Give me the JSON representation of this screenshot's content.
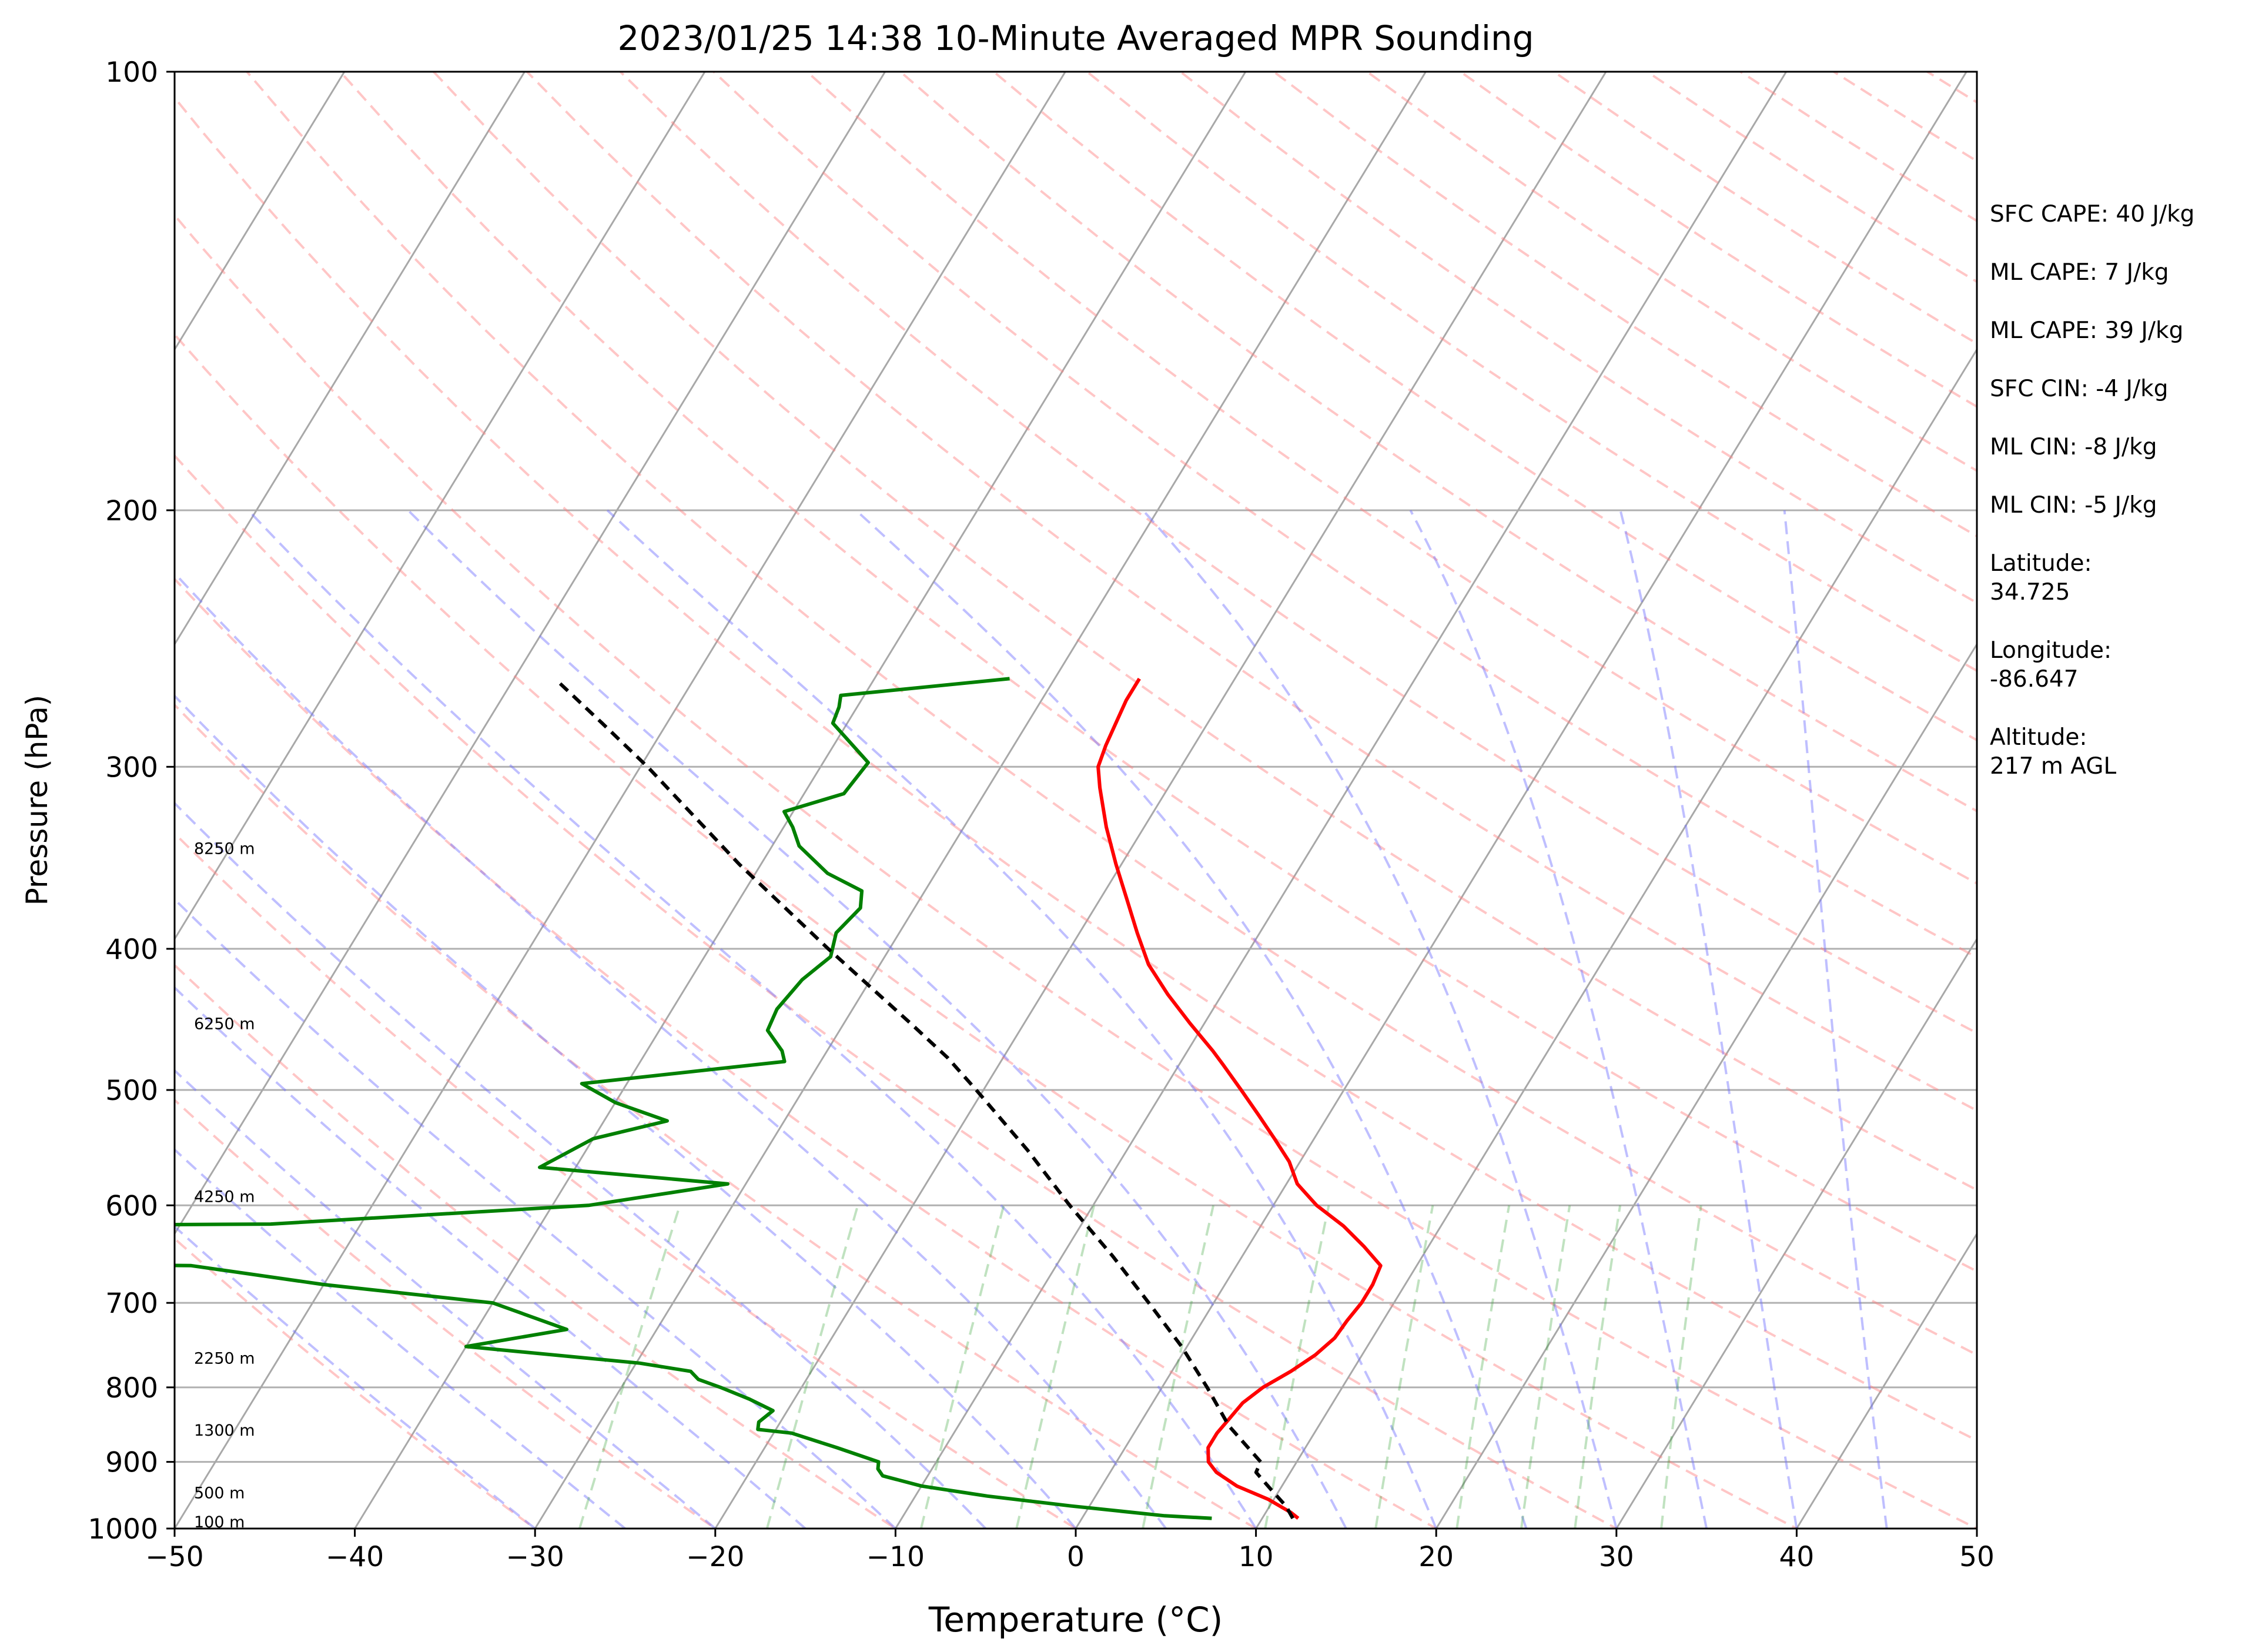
{
  "chart_data": {
    "type": "line",
    "title": "2023/01/25 14:38 10-Minute Averaged MPR Sounding",
    "xlabel": "Temperature (°C)",
    "ylabel": "Pressure (hPa)",
    "xlim": [
      -50,
      50
    ],
    "ylim": [
      1000,
      100
    ],
    "y_scale": "log",
    "skew": "skew-T",
    "grid": true,
    "x_ticks": [
      "−50",
      "−40",
      "−30",
      "−20",
      "−10",
      "0",
      "10",
      "20",
      "30",
      "40",
      "50"
    ],
    "y_ticks": [
      "100",
      "200",
      "300",
      "400",
      "500",
      "600",
      "700",
      "800",
      "900",
      "1000"
    ],
    "height_labels": [
      {
        "p": 1000,
        "text": "100 m"
      },
      {
        "p": 955,
        "text": "500 m"
      },
      {
        "p": 865,
        "text": "1300 m"
      },
      {
        "p": 772,
        "text": "2250 m"
      },
      {
        "p": 598,
        "text": "4250 m"
      },
      {
        "p": 455,
        "text": "6250 m"
      },
      {
        "p": 345,
        "text": "8250 m"
      }
    ],
    "series": [
      {
        "name": "",
        "color": "#ff0000",
        "points": [
          [
            984,
            12.0
          ],
          [
            975,
            11.4
          ],
          [
            955,
            9.7
          ],
          [
            935,
            7.5
          ],
          [
            915,
            5.9
          ],
          [
            900,
            5.1
          ],
          [
            880,
            4.6
          ],
          [
            860,
            4.6
          ],
          [
            840,
            4.8
          ],
          [
            820,
            5.0
          ],
          [
            800,
            5.6
          ],
          [
            780,
            6.6
          ],
          [
            760,
            7.4
          ],
          [
            740,
            7.9
          ],
          [
            720,
            8.0
          ],
          [
            700,
            8.2
          ],
          [
            680,
            8.2
          ],
          [
            660,
            8.0
          ],
          [
            640,
            6.4
          ],
          [
            620,
            4.6
          ],
          [
            600,
            2.4
          ],
          [
            580,
            0.6
          ],
          [
            560,
            -0.6
          ],
          [
            540,
            -2.2
          ],
          [
            520,
            -3.9
          ],
          [
            500,
            -5.7
          ],
          [
            480,
            -7.6
          ],
          [
            470,
            -8.6
          ],
          [
            450,
            -10.8
          ],
          [
            430,
            -13.0
          ],
          [
            410,
            -15.1
          ],
          [
            390,
            -16.8
          ],
          [
            370,
            -18.5
          ],
          [
            350,
            -20.3
          ],
          [
            330,
            -22.1
          ],
          [
            310,
            -23.8
          ],
          [
            300,
            -24.6
          ],
          [
            290,
            -24.9
          ],
          [
            280,
            -25.1
          ],
          [
            270,
            -25.3
          ],
          [
            261,
            -25.3
          ]
        ]
      },
      {
        "name": "",
        "color": "#008000",
        "points": [
          [
            984,
            7.2
          ],
          [
            980,
            4.5
          ],
          [
            965,
            -1.0
          ],
          [
            950,
            -6.0
          ],
          [
            935,
            -10.0
          ],
          [
            920,
            -12.5
          ],
          [
            910,
            -13.0
          ],
          [
            900,
            -13.2
          ],
          [
            880,
            -16.0
          ],
          [
            860,
            -19.0
          ],
          [
            855,
            -21.0
          ],
          [
            845,
            -21.2
          ],
          [
            830,
            -20.8
          ],
          [
            815,
            -22.5
          ],
          [
            800,
            -24.5
          ],
          [
            790,
            -26.0
          ],
          [
            780,
            -26.7
          ],
          [
            770,
            -29.8
          ],
          [
            750,
            -40.0
          ],
          [
            730,
            -35.0
          ],
          [
            700,
            -40.0
          ],
          [
            680,
            -50.0
          ],
          [
            660,
            -58.0
          ],
          [
            657,
            -75.0
          ],
          [
            620,
            -75.0
          ],
          [
            618,
            -55.0
          ],
          [
            600,
            -38.0
          ],
          [
            580,
            -31.0
          ],
          [
            565,
            -42.0
          ],
          [
            540,
            -40.0
          ],
          [
            525,
            -36.5
          ],
          [
            510,
            -40.0
          ],
          [
            495,
            -42.5
          ],
          [
            478,
            -32.0
          ],
          [
            470,
            -32.5
          ],
          [
            455,
            -34.0
          ],
          [
            440,
            -34.2
          ],
          [
            420,
            -33.8
          ],
          [
            405,
            -33.0
          ],
          [
            390,
            -33.5
          ],
          [
            375,
            -33.0
          ],
          [
            365,
            -33.5
          ],
          [
            355,
            -36.0
          ],
          [
            340,
            -38.5
          ],
          [
            330,
            -39.5
          ],
          [
            322,
            -40.5
          ],
          [
            313,
            -37.8
          ],
          [
            298,
            -37.5
          ],
          [
            280,
            -40.8
          ],
          [
            273,
            -41.0
          ],
          [
            268,
            -41.3
          ],
          [
            261,
            -32.5
          ]
        ]
      },
      {
        "name": "",
        "color": "#000000",
        "dashed": true,
        "points": [
          [
            984,
            11.7
          ],
          [
            965,
            10.9
          ],
          [
            940,
            9.5
          ],
          [
            915,
            8.1
          ],
          [
            900,
            8.0
          ],
          [
            850,
            5.0
          ],
          [
            800,
            2.5
          ],
          [
            750,
            -0.3
          ],
          [
            700,
            -3.6
          ],
          [
            650,
            -7.2
          ],
          [
            600,
            -11.3
          ],
          [
            550,
            -15.5
          ],
          [
            500,
            -20.4
          ],
          [
            475,
            -23.1
          ],
          [
            450,
            -26.3
          ],
          [
            400,
            -33.4
          ],
          [
            350,
            -41.2
          ],
          [
            300,
            -49.6
          ],
          [
            280,
            -53.6
          ],
          [
            262,
            -57.5
          ]
        ]
      }
    ],
    "side_info": [
      "SFC CAPE: 40 J/kg",
      "ML CAPE: 7 J/kg",
      "ML CAPE: 39 J/kg",
      "SFC CIN: -4 J/kg",
      "ML CIN: -8 J/kg",
      "ML CIN: -5 J/kg",
      "Latitude:\n34.725",
      "Longitude:\n-86.647",
      "Altitude:\n217 m AGL"
    ]
  }
}
